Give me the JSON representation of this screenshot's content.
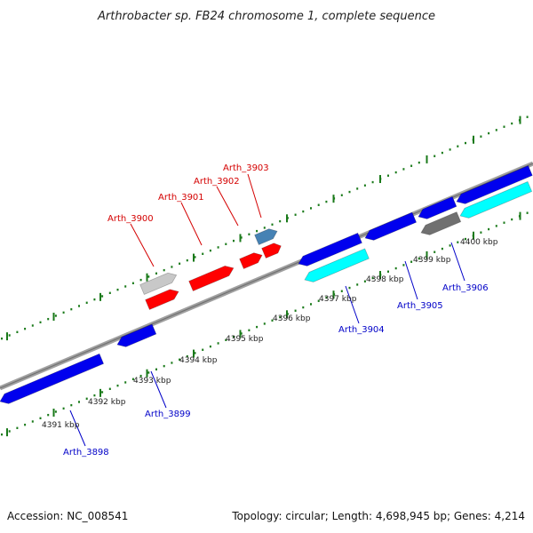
{
  "header": {
    "title": "Arthrobacter sp. FB24 chromosome 1, complete sequence"
  },
  "footer": {
    "accession": "Accession: NC_008541",
    "summary": "Topology: circular; Length: 4,698,945 bp; Genes: 4,214"
  },
  "colors": {
    "backbone": "#909090",
    "tick": "#1a7a1a",
    "forward_gene": "#ff0000",
    "reverse_gene": "#0000ee",
    "reverse_gene_alt": "#00ffff",
    "forward_gene_alt": "#c8c8c8",
    "forward_gene_alt2": "#4682b4",
    "reverse_gene_alt2": "#707070",
    "label_red": "#d40000",
    "label_blue": "#0000c8"
  },
  "kbp_labels": [
    "4391 kbp",
    "4392 kbp",
    "4393 kbp",
    "4394 kbp",
    "4395 kbp",
    "4396 kbp",
    "4397 kbp",
    "4398 kbp",
    "4399 kbp",
    "4400 kbp"
  ],
  "gene_labels": {
    "forward": [
      "Arth_3900",
      "Arth_3901",
      "Arth_3902",
      "Arth_3903"
    ],
    "reverse": [
      "Arth_3898",
      "Arth_3899",
      "Arth_3904",
      "Arth_3905",
      "Arth_3906"
    ]
  }
}
